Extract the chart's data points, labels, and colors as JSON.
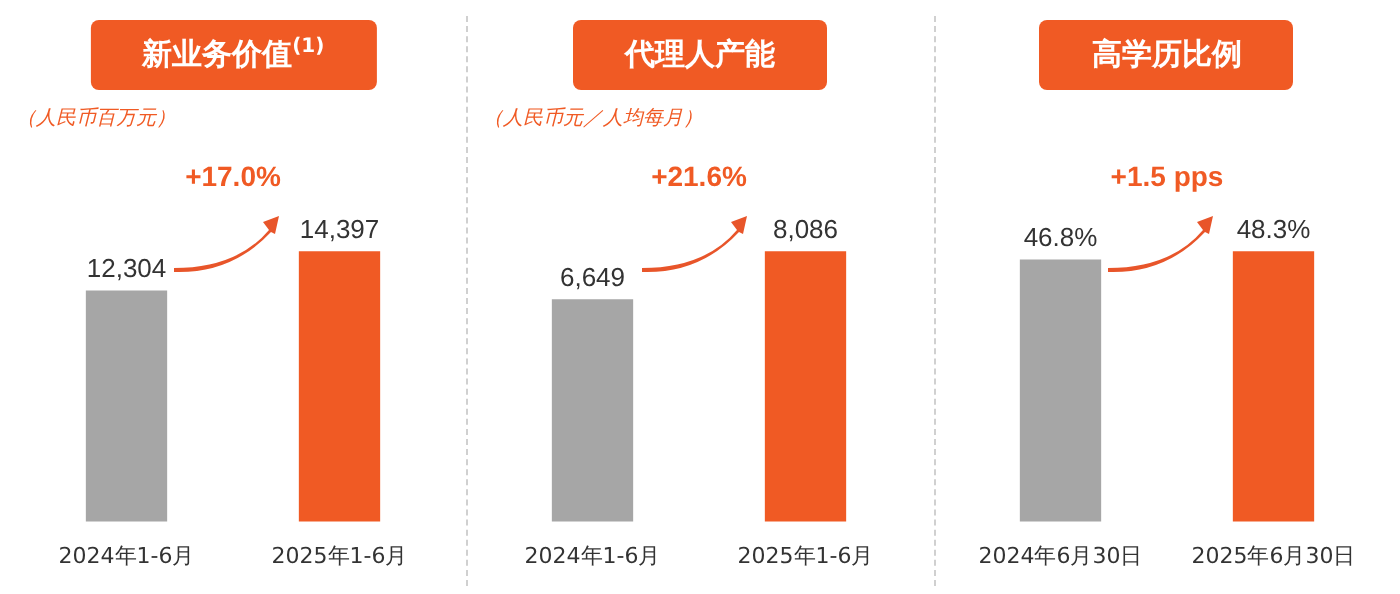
{
  "chart_data": [
    {
      "type": "bar",
      "title": "新业务价值$^{(1)}$",
      "subtitle": "（人民币百万元）",
      "categories": [
        "2024年1-6月",
        "2025年1-6月"
      ],
      "values": [
        12304,
        14397
      ],
      "colors": [
        "#a6a6a6",
        "#f05a24"
      ],
      "value_labels": [
        "12,304",
        "14,397"
      ],
      "annotations": [
        "+17.0%"
      ],
      "tick_labels": "x"
    },
    {
      "type": "bar",
      "title": "代理人产能",
      "subtitle": "（人民币元／人均每月）",
      "categories": [
        "2024年1-6月",
        "2025年1-6月"
      ],
      "values": [
        6649,
        8086
      ],
      "colors": [
        "#a6a6a6",
        "#f05a24"
      ],
      "value_labels": [
        "6,649",
        "8,086"
      ],
      "annotations": [
        "+21.6%"
      ],
      "tick_labels": "x"
    },
    {
      "type": "bar",
      "title": "高学历比例",
      "categories": [
        "2024年6月30日",
        "2025年6月30日"
      ],
      "values": [
        46.8,
        48.3
      ],
      "colors": [
        "#a6a6a6",
        "#f05a24"
      ],
      "value_labels": [
        "46.8%",
        "48.3%"
      ],
      "annotations": [
        "+1.5 pps"
      ],
      "tick_labels": "x"
    }
  ]
}
